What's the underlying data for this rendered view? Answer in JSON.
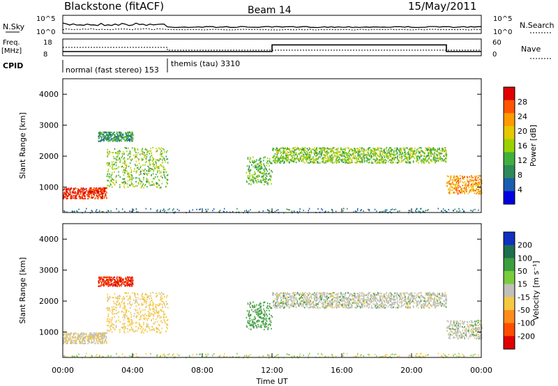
{
  "header": {
    "station": "Blackstone (fitACF)",
    "beam": "Beam 14",
    "date": "15/May/2011"
  },
  "strip_labels": {
    "nsky": "N.Sky",
    "nsky_ticks": [
      "10^5",
      "10^0"
    ],
    "nsearch": "N.Search",
    "nsearch_ticks": [
      "10^5",
      "10^0"
    ],
    "freq": "Freq.",
    "freq_unit": "[MHz]",
    "freq_ticks": [
      "18",
      "8"
    ],
    "nave": "Nave",
    "nave_ticks": [
      "60",
      "0"
    ],
    "cpid": "CPID"
  },
  "cpid_segments": [
    {
      "label": "normal (fast stereo) 153",
      "start_hour": 0,
      "end_hour": 6
    },
    {
      "label": "themis (tau) 3310",
      "start_hour": 6,
      "end_hour": 24
    }
  ],
  "freq_trace": [
    {
      "start_hour": 0,
      "end_hour": 12,
      "value_mhz": 10.5
    },
    {
      "start_hour": 12,
      "end_hour": 22,
      "value_mhz": 14.5
    },
    {
      "start_hour": 22,
      "end_hour": 24,
      "value_mhz": 10.5
    }
  ],
  "power_panel": {
    "ylabel": "Slant Range [km]",
    "yticks": [
      "4000",
      "3000",
      "2000",
      "1000"
    ],
    "colorbar_label": "Power [dB]",
    "colorbar_ticks": [
      "28",
      "24",
      "20",
      "16",
      "12",
      "8",
      "4"
    ],
    "colorbar_colors": [
      "#e00000",
      "#ff5500",
      "#ff9a00",
      "#e6c800",
      "#9ad200",
      "#3fb03f",
      "#2e8b57",
      "#1a5eb0",
      "#0000e0"
    ]
  },
  "velocity_panel": {
    "ylabel": "Slant Range [km]",
    "yticks": [
      "4000",
      "3000",
      "2000",
      "1000"
    ],
    "colorbar_label": "Velocity [m s⁻¹]",
    "colorbar_ticks": [
      "200",
      "100",
      "50",
      "15",
      "-15",
      "-50",
      "-100",
      "-200"
    ],
    "colorbar_colors": [
      "#1030c0",
      "#1e6e50",
      "#3c9e3c",
      "#7acc3c",
      "#c0c0b8",
      "#f5c842",
      "#ff8c1a",
      "#ff4d00",
      "#e00000"
    ]
  },
  "xaxis": {
    "label": "Time UT",
    "ticks": [
      "00:00",
      "04:00",
      "08:00",
      "12:00",
      "16:00",
      "20:00",
      "00:00"
    ]
  },
  "chart_data": {
    "type": "heatmap",
    "title": "Blackstone (fitACF)",
    "beam": "Beam 14",
    "date": "15/May/2011",
    "xlabel": "Time UT",
    "ylabel": "Slant Range [km]",
    "xlim_hours": [
      0,
      24
    ],
    "ylim_km": [
      180,
      4500
    ],
    "power_colorbar": {
      "label": "Power [dB]",
      "range": [
        0,
        30
      ]
    },
    "velocity_colorbar": {
      "label": "Velocity [m s⁻¹]",
      "range": [
        -200,
        200
      ]
    },
    "scatter_regions": [
      {
        "start_hour": 0.0,
        "end_hour": 2.5,
        "range_km": [
          650,
          1000
        ],
        "power_db": 28,
        "velocity": -10
      },
      {
        "start_hour": 2.5,
        "end_hour": 6.0,
        "range_km": [
          1000,
          2300
        ],
        "power_db": 14,
        "velocity": -30
      },
      {
        "start_hour": 2.0,
        "end_hour": 4.0,
        "range_km": [
          2500,
          2800
        ],
        "power_db": 10,
        "velocity": -150
      },
      {
        "start_hour": 10.5,
        "end_hour": 12.0,
        "range_km": [
          1100,
          2000
        ],
        "power_db": 12,
        "velocity": 30
      },
      {
        "start_hour": 12.0,
        "end_hour": 22.0,
        "range_km": [
          1800,
          2300
        ],
        "power_db": 14,
        "velocity": 0
      },
      {
        "start_hour": 22.0,
        "end_hour": 24.0,
        "range_km": [
          800,
          1400
        ],
        "power_db": 22,
        "velocity": 0
      }
    ]
  }
}
